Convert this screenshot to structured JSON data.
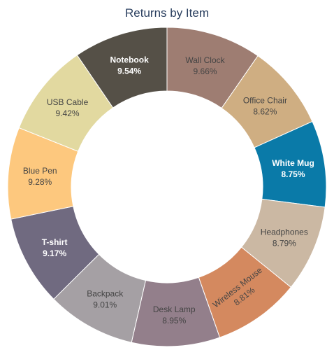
{
  "chart_data": {
    "type": "pie",
    "donut": true,
    "title": "Returns by Item",
    "categories": [
      "Wall Clock",
      "Office Chair",
      "White Mug",
      "Headphones",
      "Wireless Mouse",
      "Desk Lamp",
      "Backpack",
      "T-shirt",
      "Blue Pen",
      "USB Cable",
      "Notebook"
    ],
    "values": [
      9.66,
      8.62,
      8.75,
      8.79,
      8.81,
      8.95,
      9.01,
      9.17,
      9.28,
      9.42,
      9.54
    ],
    "value_labels": [
      "9.66%",
      "8.62%",
      "8.75%",
      "8.79%",
      "8.81%",
      "8.95%",
      "9.01%",
      "9.17%",
      "9.28%",
      "9.42%",
      "9.54%"
    ],
    "colors": [
      "#9e7d72",
      "#cfae82",
      "#0a7aa8",
      "#cbb8a3",
      "#d4895f",
      "#937f8b",
      "#a5a0a4",
      "#706a80",
      "#fdc87e",
      "#e2d9a0",
      "#555047"
    ],
    "label_colors": [
      "#444444",
      "#444444",
      "#ffffff",
      "#444444",
      "#444444",
      "#444444",
      "#444444",
      "#ffffff",
      "#444444",
      "#444444",
      "#ffffff"
    ],
    "legend": "none"
  }
}
